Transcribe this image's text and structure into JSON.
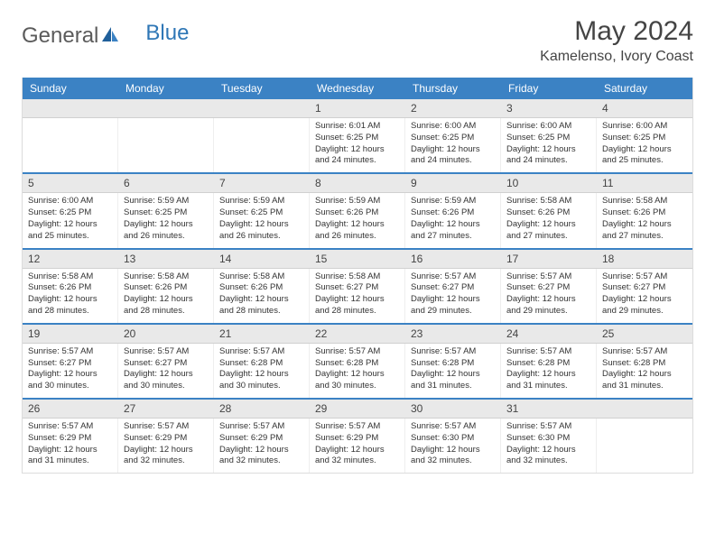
{
  "logo": {
    "part1": "General",
    "part2": "Blue"
  },
  "title": "May 2024",
  "location": "Kamelenso, Ivory Coast",
  "colors": {
    "header_bg": "#3b82c4",
    "daynum_bg": "#e9e9e9",
    "text": "#333333",
    "logo_gray": "#5b5b5b",
    "logo_blue": "#2f77b6"
  },
  "dow": [
    "Sunday",
    "Monday",
    "Tuesday",
    "Wednesday",
    "Thursday",
    "Friday",
    "Saturday"
  ],
  "weeks": [
    {
      "nums": [
        "",
        "",
        "",
        "1",
        "2",
        "3",
        "4"
      ],
      "cells": [
        null,
        null,
        null,
        {
          "sr": "Sunrise: 6:01 AM",
          "ss": "Sunset: 6:25 PM",
          "d1": "Daylight: 12 hours",
          "d2": "and 24 minutes."
        },
        {
          "sr": "Sunrise: 6:00 AM",
          "ss": "Sunset: 6:25 PM",
          "d1": "Daylight: 12 hours",
          "d2": "and 24 minutes."
        },
        {
          "sr": "Sunrise: 6:00 AM",
          "ss": "Sunset: 6:25 PM",
          "d1": "Daylight: 12 hours",
          "d2": "and 24 minutes."
        },
        {
          "sr": "Sunrise: 6:00 AM",
          "ss": "Sunset: 6:25 PM",
          "d1": "Daylight: 12 hours",
          "d2": "and 25 minutes."
        }
      ]
    },
    {
      "nums": [
        "5",
        "6",
        "7",
        "8",
        "9",
        "10",
        "11"
      ],
      "cells": [
        {
          "sr": "Sunrise: 6:00 AM",
          "ss": "Sunset: 6:25 PM",
          "d1": "Daylight: 12 hours",
          "d2": "and 25 minutes."
        },
        {
          "sr": "Sunrise: 5:59 AM",
          "ss": "Sunset: 6:25 PM",
          "d1": "Daylight: 12 hours",
          "d2": "and 26 minutes."
        },
        {
          "sr": "Sunrise: 5:59 AM",
          "ss": "Sunset: 6:25 PM",
          "d1": "Daylight: 12 hours",
          "d2": "and 26 minutes."
        },
        {
          "sr": "Sunrise: 5:59 AM",
          "ss": "Sunset: 6:26 PM",
          "d1": "Daylight: 12 hours",
          "d2": "and 26 minutes."
        },
        {
          "sr": "Sunrise: 5:59 AM",
          "ss": "Sunset: 6:26 PM",
          "d1": "Daylight: 12 hours",
          "d2": "and 27 minutes."
        },
        {
          "sr": "Sunrise: 5:58 AM",
          "ss": "Sunset: 6:26 PM",
          "d1": "Daylight: 12 hours",
          "d2": "and 27 minutes."
        },
        {
          "sr": "Sunrise: 5:58 AM",
          "ss": "Sunset: 6:26 PM",
          "d1": "Daylight: 12 hours",
          "d2": "and 27 minutes."
        }
      ]
    },
    {
      "nums": [
        "12",
        "13",
        "14",
        "15",
        "16",
        "17",
        "18"
      ],
      "cells": [
        {
          "sr": "Sunrise: 5:58 AM",
          "ss": "Sunset: 6:26 PM",
          "d1": "Daylight: 12 hours",
          "d2": "and 28 minutes."
        },
        {
          "sr": "Sunrise: 5:58 AM",
          "ss": "Sunset: 6:26 PM",
          "d1": "Daylight: 12 hours",
          "d2": "and 28 minutes."
        },
        {
          "sr": "Sunrise: 5:58 AM",
          "ss": "Sunset: 6:26 PM",
          "d1": "Daylight: 12 hours",
          "d2": "and 28 minutes."
        },
        {
          "sr": "Sunrise: 5:58 AM",
          "ss": "Sunset: 6:27 PM",
          "d1": "Daylight: 12 hours",
          "d2": "and 28 minutes."
        },
        {
          "sr": "Sunrise: 5:57 AM",
          "ss": "Sunset: 6:27 PM",
          "d1": "Daylight: 12 hours",
          "d2": "and 29 minutes."
        },
        {
          "sr": "Sunrise: 5:57 AM",
          "ss": "Sunset: 6:27 PM",
          "d1": "Daylight: 12 hours",
          "d2": "and 29 minutes."
        },
        {
          "sr": "Sunrise: 5:57 AM",
          "ss": "Sunset: 6:27 PM",
          "d1": "Daylight: 12 hours",
          "d2": "and 29 minutes."
        }
      ]
    },
    {
      "nums": [
        "19",
        "20",
        "21",
        "22",
        "23",
        "24",
        "25"
      ],
      "cells": [
        {
          "sr": "Sunrise: 5:57 AM",
          "ss": "Sunset: 6:27 PM",
          "d1": "Daylight: 12 hours",
          "d2": "and 30 minutes."
        },
        {
          "sr": "Sunrise: 5:57 AM",
          "ss": "Sunset: 6:27 PM",
          "d1": "Daylight: 12 hours",
          "d2": "and 30 minutes."
        },
        {
          "sr": "Sunrise: 5:57 AM",
          "ss": "Sunset: 6:28 PM",
          "d1": "Daylight: 12 hours",
          "d2": "and 30 minutes."
        },
        {
          "sr": "Sunrise: 5:57 AM",
          "ss": "Sunset: 6:28 PM",
          "d1": "Daylight: 12 hours",
          "d2": "and 30 minutes."
        },
        {
          "sr": "Sunrise: 5:57 AM",
          "ss": "Sunset: 6:28 PM",
          "d1": "Daylight: 12 hours",
          "d2": "and 31 minutes."
        },
        {
          "sr": "Sunrise: 5:57 AM",
          "ss": "Sunset: 6:28 PM",
          "d1": "Daylight: 12 hours",
          "d2": "and 31 minutes."
        },
        {
          "sr": "Sunrise: 5:57 AM",
          "ss": "Sunset: 6:28 PM",
          "d1": "Daylight: 12 hours",
          "d2": "and 31 minutes."
        }
      ]
    },
    {
      "nums": [
        "26",
        "27",
        "28",
        "29",
        "30",
        "31",
        ""
      ],
      "cells": [
        {
          "sr": "Sunrise: 5:57 AM",
          "ss": "Sunset: 6:29 PM",
          "d1": "Daylight: 12 hours",
          "d2": "and 31 minutes."
        },
        {
          "sr": "Sunrise: 5:57 AM",
          "ss": "Sunset: 6:29 PM",
          "d1": "Daylight: 12 hours",
          "d2": "and 32 minutes."
        },
        {
          "sr": "Sunrise: 5:57 AM",
          "ss": "Sunset: 6:29 PM",
          "d1": "Daylight: 12 hours",
          "d2": "and 32 minutes."
        },
        {
          "sr": "Sunrise: 5:57 AM",
          "ss": "Sunset: 6:29 PM",
          "d1": "Daylight: 12 hours",
          "d2": "and 32 minutes."
        },
        {
          "sr": "Sunrise: 5:57 AM",
          "ss": "Sunset: 6:30 PM",
          "d1": "Daylight: 12 hours",
          "d2": "and 32 minutes."
        },
        {
          "sr": "Sunrise: 5:57 AM",
          "ss": "Sunset: 6:30 PM",
          "d1": "Daylight: 12 hours",
          "d2": "and 32 minutes."
        },
        null
      ]
    }
  ]
}
